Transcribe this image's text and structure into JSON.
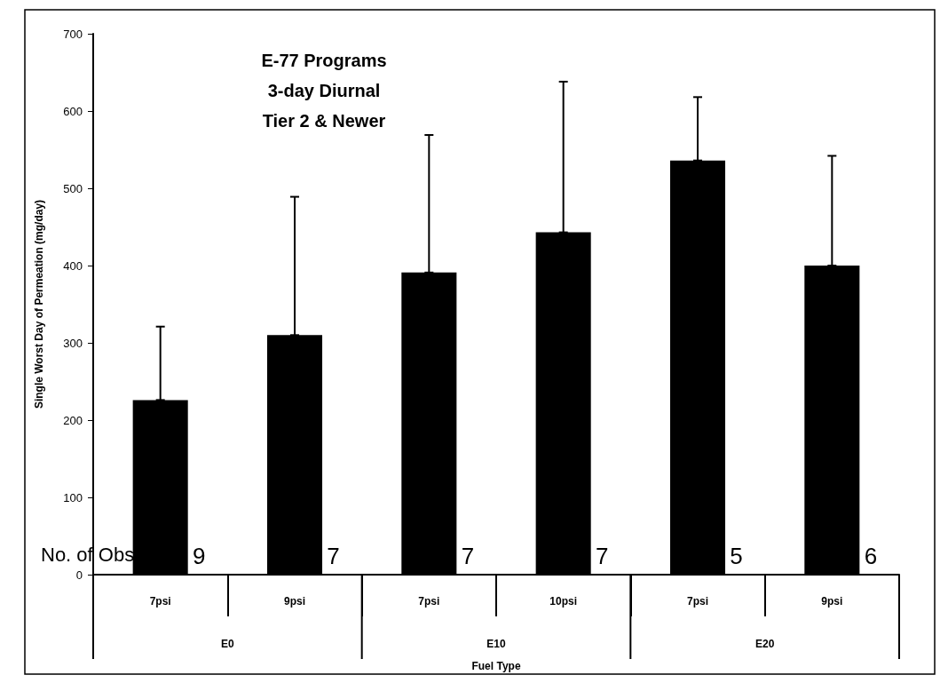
{
  "chart_data": {
    "type": "bar",
    "title": "E-77 Programs\n3-day Diurnal\nTier 2 & Newer",
    "ylabel": "Single Worst Day of Permeation (mg/day)",
    "xlabel": "Fuel Type",
    "categories": [
      "7psi",
      "9psi",
      "7psi",
      "10psi",
      "7psi",
      "9psi"
    ],
    "values": [
      226,
      310,
      391,
      443,
      536,
      400
    ],
    "errors": [
      [
        226,
        321
      ],
      [
        310,
        489
      ],
      [
        391,
        569
      ],
      [
        443,
        638
      ],
      [
        536,
        618
      ],
      [
        400,
        542
      ]
    ],
    "color": "#000000",
    "ylim": [
      0,
      700
    ],
    "yticks": [
      0,
      100,
      200,
      300,
      400,
      500,
      600,
      700
    ],
    "grid": false,
    "annotations": [
      "No. of Obs",
      "9",
      "7",
      "7",
      "7",
      "5",
      "6",
      "E0",
      "E10",
      "E20"
    ]
  }
}
